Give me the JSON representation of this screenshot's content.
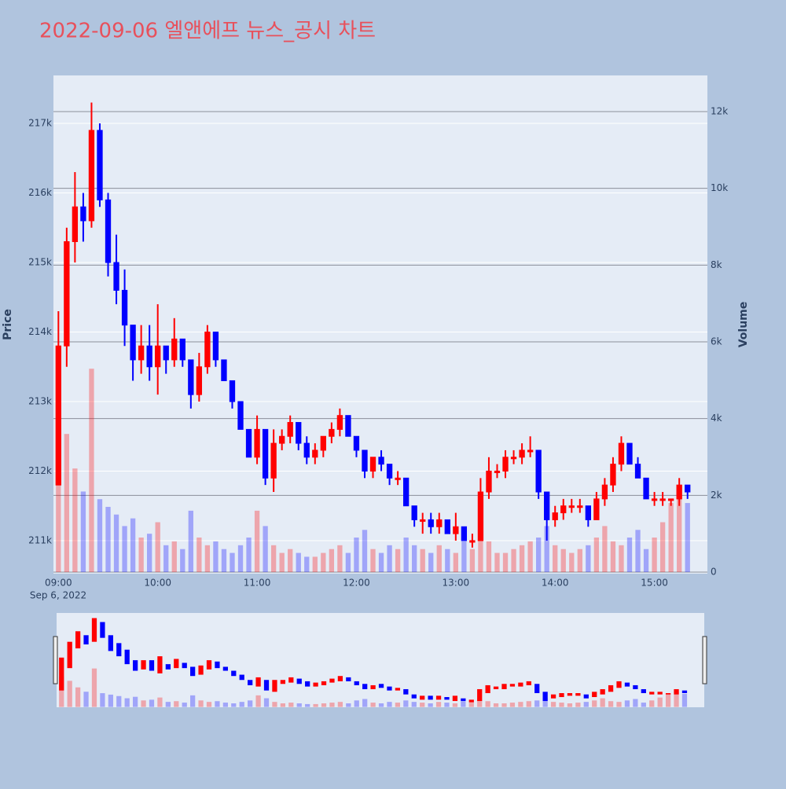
{
  "chart_data": {
    "type": "candlestick",
    "title": "2022-09-06 엘앤에프 뉴스_공시 차트",
    "y_axis_label": "Price",
    "y2_axis_label": "Volume",
    "x_date_label": "Sep 6, 2022",
    "increasing_color": "#ff0000",
    "decreasing_color": "#0000ff",
    "xlim": [
      "08:57",
      "15:32"
    ],
    "xticks": [
      "09:00",
      "10:00",
      "11:00",
      "12:00",
      "13:00",
      "14:00",
      "15:00"
    ],
    "ylim": [
      210525,
      217690
    ],
    "yticks": [
      {
        "value": 211000,
        "label": "211k"
      },
      {
        "value": 212000,
        "label": "212k"
      },
      {
        "value": 213000,
        "label": "213k"
      },
      {
        "value": 214000,
        "label": "214k"
      },
      {
        "value": 215000,
        "label": "215k"
      },
      {
        "value": 216000,
        "label": "216k"
      },
      {
        "value": 217000,
        "label": "217k"
      }
    ],
    "y2lim": [
      -41,
      12942
    ],
    "y2ticks": [
      0,
      {
        "value": 2000,
        "label": "2k"
      },
      {
        "value": 4000,
        "label": "4k"
      },
      {
        "value": 6000,
        "label": "6k"
      },
      {
        "value": 8000,
        "label": "8k"
      },
      {
        "value": 10000,
        "label": "10k"
      },
      {
        "value": 12000,
        "label": "12k"
      }
    ],
    "x": [
      "09:00",
      "09:05",
      "09:10",
      "09:15",
      "09:20",
      "09:25",
      "09:30",
      "09:35",
      "09:40",
      "09:45",
      "09:50",
      "09:55",
      "10:00",
      "10:05",
      "10:10",
      "10:15",
      "10:20",
      "10:25",
      "10:30",
      "10:35",
      "10:40",
      "10:45",
      "10:50",
      "10:55",
      "11:00",
      "11:05",
      "11:10",
      "11:15",
      "11:20",
      "11:25",
      "11:30",
      "11:35",
      "11:40",
      "11:45",
      "11:50",
      "11:55",
      "12:00",
      "12:05",
      "12:10",
      "12:15",
      "12:20",
      "12:25",
      "12:30",
      "12:35",
      "12:40",
      "12:45",
      "12:50",
      "12:55",
      "13:00",
      "13:05",
      "13:10",
      "13:15",
      "13:20",
      "13:25",
      "13:30",
      "13:35",
      "13:40",
      "13:45",
      "13:50",
      "13:55",
      "14:00",
      "14:05",
      "14:10",
      "14:15",
      "14:20",
      "14:25",
      "14:30",
      "14:35",
      "14:40",
      "14:45",
      "14:50",
      "14:55",
      "15:00",
      "15:05",
      "15:10",
      "15:15",
      "15:20"
    ],
    "open": [
      211800,
      213800,
      215300,
      215800,
      215600,
      216900,
      215900,
      215000,
      214600,
      214100,
      213600,
      213800,
      213500,
      213800,
      213600,
      213900,
      213600,
      213100,
      213500,
      214000,
      213600,
      213300,
      213000,
      212600,
      212200,
      212600,
      211900,
      212400,
      212500,
      212700,
      212400,
      212200,
      212300,
      212500,
      212600,
      212800,
      212500,
      212300,
      212000,
      212200,
      212100,
      211900,
      211900,
      211500,
      211300,
      211300,
      211200,
      211300,
      211100,
      211200,
      211000,
      211000,
      211700,
      212000,
      212000,
      212200,
      212200,
      212300,
      212300,
      211700,
      211300,
      211400,
      211500,
      211500,
      211500,
      211300,
      211600,
      211800,
      212100,
      212400,
      212100,
      211900,
      211600,
      211600,
      211600,
      211600,
      211800
    ],
    "high": [
      214300,
      215500,
      216300,
      216000,
      217300,
      217000,
      216000,
      215400,
      214900,
      214100,
      214100,
      214100,
      214400,
      213800,
      214200,
      213900,
      213600,
      213700,
      214100,
      214000,
      213600,
      213300,
      213000,
      212600,
      212800,
      212600,
      212600,
      212600,
      212800,
      212700,
      212500,
      212400,
      212500,
      212700,
      212900,
      212800,
      212500,
      212300,
      212200,
      212300,
      212100,
      212000,
      211900,
      211500,
      211400,
      211400,
      211400,
      211300,
      211400,
      211200,
      211100,
      211900,
      212200,
      212100,
      212300,
      212300,
      212400,
      212500,
      212300,
      211700,
      211500,
      211600,
      211600,
      211600,
      211500,
      211700,
      211900,
      212200,
      212500,
      212400,
      212200,
      211900,
      211700,
      211700,
      211600,
      211900,
      211800
    ],
    "low": [
      211800,
      213500,
      215000,
      215300,
      215500,
      215800,
      214800,
      214400,
      213800,
      213300,
      213400,
      213300,
      213100,
      213400,
      213500,
      213500,
      212900,
      213000,
      213400,
      213500,
      213300,
      212900,
      212600,
      212200,
      212100,
      211800,
      211700,
      212300,
      212400,
      212300,
      212100,
      212100,
      212200,
      212400,
      212500,
      212500,
      212200,
      211900,
      211900,
      212000,
      211800,
      211800,
      211500,
      211200,
      211100,
      211100,
      211100,
      211100,
      211000,
      211000,
      210900,
      211000,
      211600,
      211900,
      211900,
      212100,
      212100,
      212200,
      211600,
      211000,
      211200,
      211300,
      211400,
      211400,
      211200,
      211300,
      211500,
      211700,
      212000,
      212100,
      211900,
      211600,
      211500,
      211500,
      211500,
      211500,
      211600
    ],
    "close": [
      213800,
      215300,
      215800,
      215600,
      216900,
      215900,
      215000,
      214600,
      214100,
      213600,
      213800,
      213500,
      213800,
      213600,
      213900,
      213600,
      213100,
      213500,
      214000,
      213600,
      213300,
      213000,
      212600,
      212200,
      212600,
      211900,
      212400,
      212500,
      212700,
      212400,
      212200,
      212300,
      212500,
      212600,
      212800,
      212500,
      212300,
      212000,
      212200,
      212100,
      211900,
      211900,
      211500,
      211300,
      211300,
      211200,
      211300,
      211100,
      211200,
      211000,
      211000,
      211700,
      212000,
      212000,
      212200,
      212200,
      212300,
      212300,
      211700,
      211300,
      211400,
      211500,
      211500,
      211500,
      211300,
      211600,
      211800,
      212100,
      212400,
      212100,
      211900,
      211600,
      211600,
      211600,
      211600,
      211800,
      211700
    ],
    "volume": [
      4200,
      3600,
      2700,
      2100,
      5300,
      1900,
      1700,
      1500,
      1200,
      1400,
      900,
      1000,
      1300,
      700,
      800,
      600,
      1600,
      900,
      700,
      800,
      600,
      500,
      700,
      900,
      1600,
      1200,
      700,
      500,
      600,
      500,
      400,
      400,
      500,
      600,
      700,
      500,
      900,
      1100,
      600,
      500,
      700,
      600,
      900,
      700,
      600,
      500,
      700,
      600,
      500,
      800,
      600,
      1000,
      800,
      500,
      500,
      600,
      700,
      800,
      900,
      1200,
      700,
      600,
      500,
      600,
      700,
      900,
      1200,
      800,
      700,
      900,
      1100,
      600,
      900,
      1300,
      1800,
      2100,
      1800
    ]
  }
}
